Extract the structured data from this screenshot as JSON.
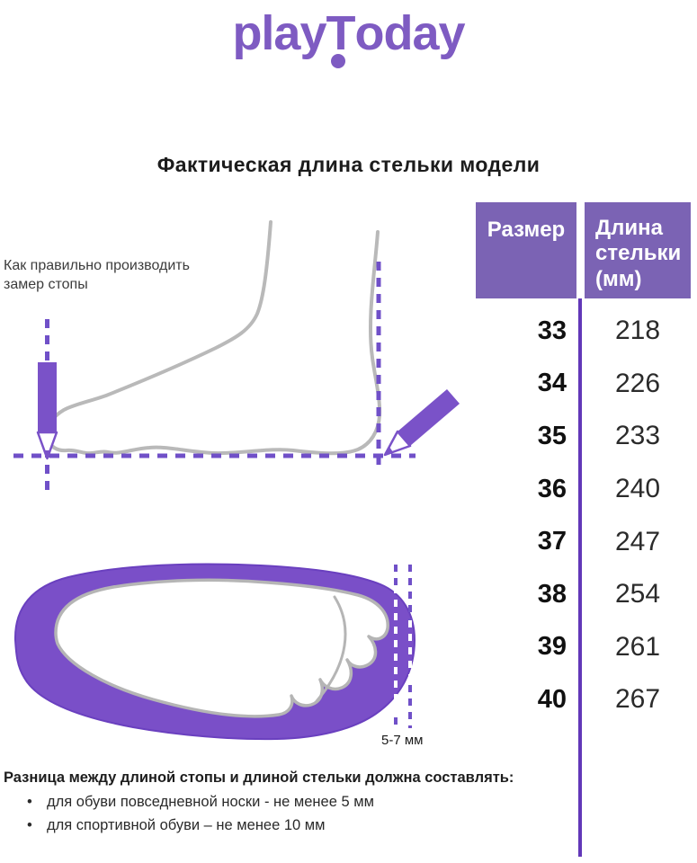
{
  "logo": {
    "part1": "play",
    "part2": "T",
    "part3": "oday"
  },
  "title": "Фактическая длина стельки модели",
  "diagram": {
    "instruction": "Как правильно производить замер стопы",
    "gap_label": "5-7 мм"
  },
  "table": {
    "header_size": "Размер",
    "header_length": "Длина стельки (мм)",
    "rows": [
      {
        "size": "33",
        "length": "218"
      },
      {
        "size": "34",
        "length": "226"
      },
      {
        "size": "35",
        "length": "233"
      },
      {
        "size": "36",
        "length": "240"
      },
      {
        "size": "37",
        "length": "247"
      },
      {
        "size": "38",
        "length": "254"
      },
      {
        "size": "39",
        "length": "261"
      },
      {
        "size": "40",
        "length": "267"
      }
    ]
  },
  "footnote": {
    "heading": "Разница между длиной стопы и длиной стельки должна составлять:",
    "bullets": [
      "для обуви повседневной носки -  не менее 5 мм",
      "для спортивной обуви – не менее 10 мм"
    ]
  },
  "colors": {
    "brand_purple": "#7e5bc2",
    "table_header": "#7b63b4",
    "divider": "#6238b8",
    "dash_purple": "#7050c8",
    "insole_fill": "#7a4fc8",
    "foot_outline_gray": "#b9b9b9"
  }
}
